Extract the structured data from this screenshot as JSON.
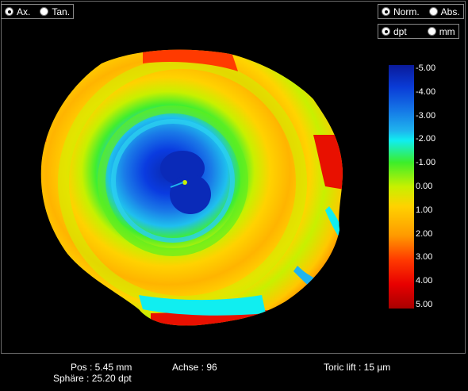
{
  "mode_group": {
    "options": [
      {
        "label": "Ax.",
        "selected": true
      },
      {
        "label": "Tan.",
        "selected": false
      }
    ]
  },
  "scale_group": {
    "options": [
      {
        "label": "Norm.",
        "selected": true
      },
      {
        "label": "Abs.",
        "selected": false
      }
    ]
  },
  "unit_group": {
    "options": [
      {
        "label": "dpt",
        "selected": true
      },
      {
        "label": "mm",
        "selected": false
      }
    ]
  },
  "legend": {
    "ticks": [
      "-5.00",
      "-4.00",
      "-3.00",
      "-2.00",
      "-1.00",
      "0.00",
      "1.00",
      "2.00",
      "3.00",
      "4.00",
      "5.00"
    ],
    "colors": [
      "#0a1a9a",
      "#0a3bd6",
      "#1473e6",
      "#1fb4ee",
      "#10eef0",
      "#3cee2a",
      "#c8f000",
      "#ffd200",
      "#ff9a00",
      "#ff3a00",
      "#e80000",
      "#a80000"
    ]
  },
  "status": {
    "pos": "Pos : 5.45 mm",
    "sphere": "Sphäre : 25.20 dpt",
    "axis": "Achse : 96",
    "toric": "Toric lift : 15 µm"
  }
}
